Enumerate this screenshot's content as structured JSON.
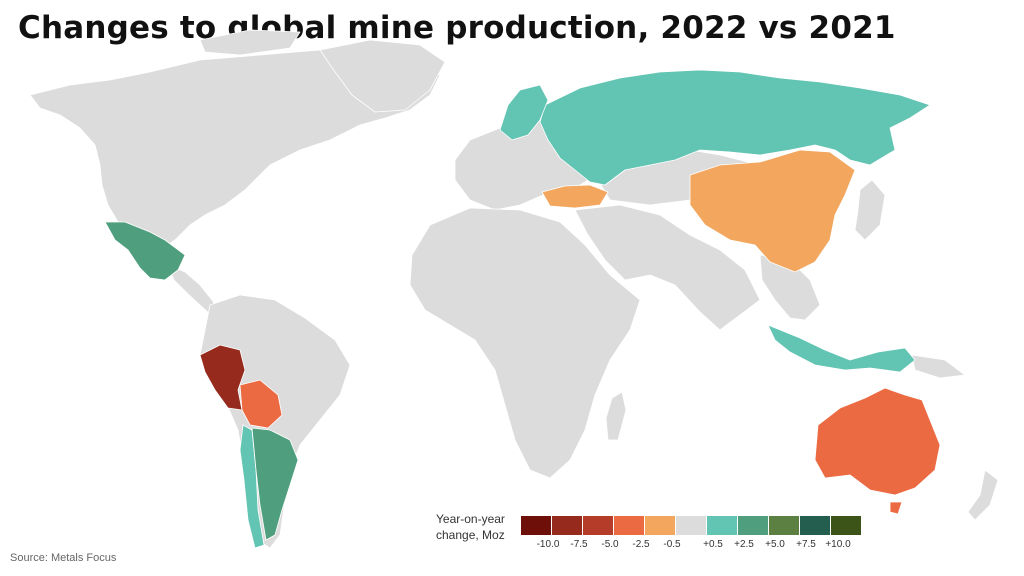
{
  "title": "Changes to global mine production, 2022 vs 2021",
  "source": "Source: Metals Focus",
  "legend": {
    "title_line1": "Year-on-year",
    "title_line2": "change, Moz",
    "colors": [
      "#6e0f0a",
      "#962a1c",
      "#b43c28",
      "#ec6a42",
      "#f2a65e",
      "#dcdcdc",
      "#62c4b2",
      "#4f9f7f",
      "#5c7f42",
      "#235e4f",
      "#3c5418"
    ],
    "ticks": [
      "-10.0",
      "-7.5",
      "-5.0",
      "-2.5",
      "-0.5",
      "+0.5",
      "+2.5",
      "+5.0",
      "+7.5",
      "+10.0"
    ]
  },
  "colors": {
    "land": "#dcdcdc",
    "border": "#ffffff"
  },
  "countries": {
    "russia": "#62c4b2",
    "nordic": "#62c4b2",
    "indonesia": "#62c4b2",
    "chile": "#62c4b2",
    "mexico": "#4f9f7f",
    "argentina": "#4f9f7f",
    "china": "#f2a65e",
    "turkey": "#f2a65e",
    "australia": "#ec6a42",
    "bolivia": "#ec6a42",
    "peru": "#962a1c"
  }
}
